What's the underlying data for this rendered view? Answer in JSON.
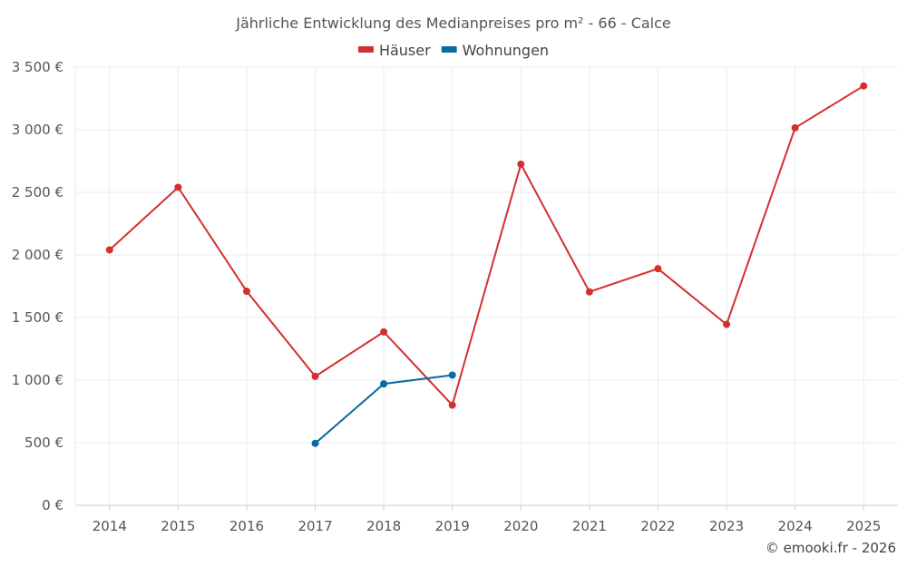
{
  "chart_data": {
    "type": "line",
    "title": "Jährliche Entwicklung des Medianpreises pro m² - 66 - Calce",
    "categories": [
      "2014",
      "2015",
      "2016",
      "2017",
      "2018",
      "2019",
      "2020",
      "2021",
      "2022",
      "2023",
      "2024",
      "2025"
    ],
    "ylim": [
      0,
      3500
    ],
    "yticks": [
      0,
      500,
      1000,
      1500,
      2000,
      2500,
      3000,
      3500
    ],
    "ytick_labels": [
      "0 €",
      "500 €",
      "1 000 €",
      "1 500 €",
      "2 000 €",
      "2 500 €",
      "3 000 €",
      "3 500 €"
    ],
    "grid": true,
    "legend_position": "top-center",
    "series": [
      {
        "name": "Häuser",
        "color": "#d32f2f",
        "values": [
          2040,
          2540,
          1710,
          1030,
          1385,
          800,
          2725,
          1705,
          1890,
          1445,
          3015,
          3350
        ]
      },
      {
        "name": "Wohnungen",
        "color": "#0a6aa1",
        "values": [
          null,
          null,
          null,
          495,
          970,
          1040,
          null,
          null,
          null,
          null,
          null,
          null
        ]
      }
    ]
  },
  "credit": "© emooki.fr - 2026"
}
